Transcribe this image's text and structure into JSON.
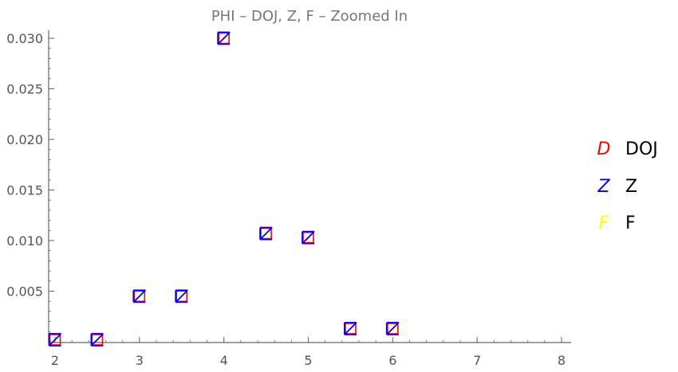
{
  "chart_data": {
    "type": "scatter",
    "title": "PHI – DOJ, Z, F – Zoomed In",
    "xlabel": "",
    "ylabel": "",
    "xlim": [
      2,
      8
    ],
    "ylim": [
      0,
      0.03
    ],
    "x_ticks": [
      2,
      3,
      4,
      5,
      6,
      7,
      8
    ],
    "y_ticks": [
      0.005,
      0.01,
      0.015,
      0.02,
      0.025,
      0.03
    ],
    "x_tick_labels": [
      "2",
      "3",
      "4",
      "5",
      "6",
      "7",
      "8"
    ],
    "y_tick_labels": [
      "0.005",
      "0.010",
      "0.015",
      "0.020",
      "0.025",
      "0.030"
    ],
    "grid": false,
    "legend_position": "right",
    "series": [
      {
        "name": "DOJ",
        "marker": "D",
        "color": "#ff0000",
        "points": [
          [
            2,
            0.0002
          ],
          [
            2.5,
            0.0002
          ],
          [
            3,
            0.0045
          ],
          [
            3.5,
            0.0045
          ],
          [
            4,
            0.03
          ],
          [
            4.5,
            0.0107
          ],
          [
            5,
            0.0103
          ],
          [
            5.5,
            0.0013
          ],
          [
            6,
            0.0013
          ]
        ]
      },
      {
        "name": "Z",
        "marker": "Z",
        "color": "#0000ff",
        "points": [
          [
            2,
            0.0002
          ],
          [
            2.5,
            0.0002
          ],
          [
            3,
            0.0045
          ],
          [
            3.5,
            0.0045
          ],
          [
            4,
            0.03
          ],
          [
            4.5,
            0.0107
          ],
          [
            5,
            0.0103
          ],
          [
            5.5,
            0.0013
          ],
          [
            6,
            0.0013
          ]
        ]
      },
      {
        "name": "F",
        "marker": "F",
        "color": "#ffff00",
        "points": []
      }
    ]
  }
}
